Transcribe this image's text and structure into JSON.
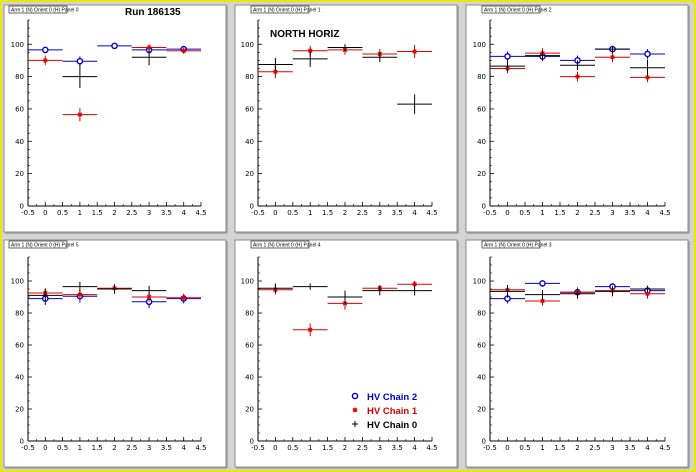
{
  "canvas_title": "Run 186135",
  "chart_data": [
    {
      "type": "scatter",
      "title": "Arm 1 (N) Orient 0 (H) Panel 0",
      "annotation": "Run 186135",
      "xlim": [
        -0.5,
        4.5
      ],
      "ylim": [
        0,
        115
      ],
      "xticks": [
        "-0.5",
        "0",
        "0.5",
        "1",
        "1.5",
        "2",
        "2.5",
        "3",
        "3.5",
        "4",
        "4.5"
      ],
      "yticks": [
        "0",
        "20",
        "40",
        "60",
        "80",
        "100"
      ],
      "series": [
        {
          "name": "HV Chain 2",
          "color": "#0000cc",
          "marker": "circle",
          "points": [
            {
              "x": 0,
              "y": 96.5,
              "err": 2
            },
            {
              "x": 1,
              "y": 89.5,
              "err": 3
            },
            {
              "x": 2,
              "y": 99,
              "err": 1
            },
            {
              "x": 3,
              "y": 96.5,
              "err": 2
            },
            {
              "x": 4,
              "y": 97,
              "err": 2
            }
          ]
        },
        {
          "name": "HV Chain 1",
          "color": "#dd0000",
          "marker": "star",
          "points": [
            {
              "x": 0,
              "y": 90,
              "err": 3
            },
            {
              "x": 1,
              "y": 56.5,
              "err": 4
            },
            {
              "x": 3,
              "y": 98,
              "err": 2
            },
            {
              "x": 4,
              "y": 96,
              "err": 2
            }
          ]
        },
        {
          "name": "HV Chain 0",
          "color": "#000000",
          "marker": "plus",
          "points": [
            {
              "x": 1,
              "y": 80,
              "err": 7
            },
            {
              "x": 3,
              "y": 92,
              "err": 5
            }
          ]
        }
      ]
    },
    {
      "type": "scatter",
      "title": "Arm 1 (N) Orient 0 (H) Panel 1",
      "annotation": "NORTH HORIZ",
      "xlim": [
        -0.5,
        4.5
      ],
      "ylim": [
        0,
        115
      ],
      "xticks": [
        "-0.5",
        "0",
        "0.5",
        "1",
        "1.5",
        "2",
        "2.5",
        "3",
        "3.5",
        "4",
        "4.5"
      ],
      "yticks": [
        "0",
        "20",
        "40",
        "60",
        "80",
        "100"
      ],
      "series": [
        {
          "name": "HV Chain 2",
          "color": "#0000cc",
          "marker": "circle",
          "points": []
        },
        {
          "name": "HV Chain 1",
          "color": "#dd0000",
          "marker": "star",
          "points": [
            {
              "x": 0,
              "y": 83,
              "err": 4
            },
            {
              "x": 1,
              "y": 96,
              "err": 3
            },
            {
              "x": 2,
              "y": 96.5,
              "err": 3
            },
            {
              "x": 3,
              "y": 94,
              "err": 3
            },
            {
              "x": 4,
              "y": 95.5,
              "err": 4
            }
          ]
        },
        {
          "name": "HV Chain 0",
          "color": "#000000",
          "marker": "plus",
          "points": [
            {
              "x": 0,
              "y": 87.5,
              "err": 4
            },
            {
              "x": 1,
              "y": 91,
              "err": 5
            },
            {
              "x": 2,
              "y": 98,
              "err": 2
            },
            {
              "x": 3,
              "y": 92,
              "err": 3
            },
            {
              "x": 4,
              "y": 63,
              "err": 6
            }
          ]
        }
      ]
    },
    {
      "type": "scatter",
      "title": "Arm 1 (N) Orient 0 (H) Panel 2",
      "xlim": [
        -0.5,
        4.5
      ],
      "ylim": [
        0,
        115
      ],
      "xticks": [
        "-0.5",
        "0",
        "0.5",
        "1",
        "1.5",
        "2",
        "2.5",
        "3",
        "3.5",
        "4",
        "4.5"
      ],
      "yticks": [
        "0",
        "20",
        "40",
        "60",
        "80",
        "100"
      ],
      "series": [
        {
          "name": "HV Chain 2",
          "color": "#0000cc",
          "marker": "circle",
          "points": [
            {
              "x": 0,
              "y": 92.5,
              "err": 3
            },
            {
              "x": 1,
              "y": 92.5,
              "err": 3
            },
            {
              "x": 2,
              "y": 90,
              "err": 3
            },
            {
              "x": 3,
              "y": 97,
              "err": 2
            },
            {
              "x": 4,
              "y": 94,
              "err": 3
            }
          ]
        },
        {
          "name": "HV Chain 1",
          "color": "#dd0000",
          "marker": "star",
          "points": [
            {
              "x": 0,
              "y": 85,
              "err": 3
            },
            {
              "x": 1,
              "y": 94.5,
              "err": 3
            },
            {
              "x": 2,
              "y": 80,
              "err": 3
            },
            {
              "x": 3,
              "y": 92,
              "err": 3
            },
            {
              "x": 4,
              "y": 79.5,
              "err": 3
            }
          ]
        },
        {
          "name": "HV Chain 0",
          "color": "#000000",
          "marker": "plus",
          "points": [
            {
              "x": 0,
              "y": 86.5,
              "err": 3
            },
            {
              "x": 1,
              "y": 93,
              "err": 3
            },
            {
              "x": 2,
              "y": 87,
              "err": 3
            },
            {
              "x": 3,
              "y": 97,
              "err": 2
            },
            {
              "x": 4,
              "y": 85.5,
              "err": 5
            }
          ]
        }
      ]
    },
    {
      "type": "scatter",
      "title": "Arm 1 (N) Orient 0 (H) Panel 5",
      "xlim": [
        -0.5,
        4.5
      ],
      "ylim": [
        0,
        115
      ],
      "xticks": [
        "-0.5",
        "0",
        "0.5",
        "1",
        "1.5",
        "2",
        "2.5",
        "3",
        "3.5",
        "4",
        "4.5"
      ],
      "yticks": [
        "0",
        "20",
        "40",
        "60",
        "80",
        "100"
      ],
      "series": [
        {
          "name": "HV Chain 2",
          "color": "#0000cc",
          "marker": "circle",
          "points": [
            {
              "x": 0,
              "y": 89,
              "err": 4
            },
            {
              "x": 1,
              "y": 90.5,
              "err": 4
            },
            {
              "x": 3,
              "y": 87,
              "err": 4
            },
            {
              "x": 4,
              "y": 89,
              "err": 3
            }
          ]
        },
        {
          "name": "HV Chain 1",
          "color": "#dd0000",
          "marker": "star",
          "points": [
            {
              "x": 0,
              "y": 92.5,
              "err": 3
            },
            {
              "x": 1,
              "y": 91.5,
              "err": 3
            },
            {
              "x": 2,
              "y": 95.5,
              "err": 2
            },
            {
              "x": 3,
              "y": 90,
              "err": 3
            },
            {
              "x": 4,
              "y": 89.5,
              "err": 2
            }
          ]
        },
        {
          "name": "HV Chain 0",
          "color": "#000000",
          "marker": "plus",
          "points": [
            {
              "x": 0,
              "y": 91,
              "err": 4
            },
            {
              "x": 1,
              "y": 96.5,
              "err": 3
            },
            {
              "x": 2,
              "y": 95,
              "err": 3
            },
            {
              "x": 3,
              "y": 94,
              "err": 3
            }
          ]
        }
      ]
    },
    {
      "type": "scatter",
      "title": "Arm 1 (N) Orient 0 (H) Panel 4",
      "xlim": [
        -0.5,
        4.5
      ],
      "ylim": [
        0,
        115
      ],
      "xticks": [
        "-0.5",
        "0",
        "0.5",
        "1",
        "1.5",
        "2",
        "2.5",
        "3",
        "3.5",
        "4",
        "4.5"
      ],
      "yticks": [
        "0",
        "20",
        "40",
        "60",
        "80",
        "100"
      ],
      "legend_position": "bottom-right",
      "series": [
        {
          "name": "HV Chain 2",
          "color": "#0000cc",
          "marker": "circle",
          "points": []
        },
        {
          "name": "HV Chain 1",
          "color": "#dd0000",
          "marker": "star",
          "points": [
            {
              "x": 0,
              "y": 94.5,
              "err": 3
            },
            {
              "x": 1,
              "y": 69.5,
              "err": 4
            },
            {
              "x": 2,
              "y": 86,
              "err": 4
            },
            {
              "x": 3,
              "y": 95.5,
              "err": 2
            },
            {
              "x": 4,
              "y": 98,
              "err": 2
            }
          ]
        },
        {
          "name": "HV Chain 0",
          "color": "#000000",
          "marker": "plus",
          "points": [
            {
              "x": 0,
              "y": 95.5,
              "err": 3
            },
            {
              "x": 1,
              "y": 96.5,
              "err": 2
            },
            {
              "x": 2,
              "y": 90,
              "err": 4
            },
            {
              "x": 3,
              "y": 94,
              "err": 3
            },
            {
              "x": 4,
              "y": 94,
              "err": 3
            }
          ]
        }
      ]
    },
    {
      "type": "scatter",
      "title": "Arm 1 (N) Orient 0 (H) Panel 3",
      "xlim": [
        -0.5,
        4.5
      ],
      "ylim": [
        0,
        115
      ],
      "xticks": [
        "-0.5",
        "0",
        "0.5",
        "1",
        "1.5",
        "2",
        "2.5",
        "3",
        "3.5",
        "4",
        "4.5"
      ],
      "yticks": [
        "0",
        "20",
        "40",
        "60",
        "80",
        "100"
      ],
      "series": [
        {
          "name": "HV Chain 2",
          "color": "#0000cc",
          "marker": "circle",
          "points": [
            {
              "x": 0,
              "y": 89,
              "err": 3
            },
            {
              "x": 1,
              "y": 98.5,
              "err": 2
            },
            {
              "x": 2,
              "y": 93,
              "err": 3
            },
            {
              "x": 3,
              "y": 96.5,
              "err": 2
            },
            {
              "x": 4,
              "y": 94,
              "err": 3
            }
          ]
        },
        {
          "name": "HV Chain 1",
          "color": "#dd0000",
          "marker": "star",
          "points": [
            {
              "x": 0,
              "y": 94.5,
              "err": 3
            },
            {
              "x": 1,
              "y": 87.5,
              "err": 3
            },
            {
              "x": 2,
              "y": 93,
              "err": 3
            },
            {
              "x": 3,
              "y": 94,
              "err": 3
            },
            {
              "x": 4,
              "y": 92,
              "err": 3
            }
          ]
        },
        {
          "name": "HV Chain 0",
          "color": "#000000",
          "marker": "plus",
          "points": [
            {
              "x": 0,
              "y": 93.5,
              "err": 4
            },
            {
              "x": 1,
              "y": 91.5,
              "err": 3
            },
            {
              "x": 2,
              "y": 92,
              "err": 3
            },
            {
              "x": 3,
              "y": 93.5,
              "err": 3
            },
            {
              "x": 4,
              "y": 95,
              "err": 2
            }
          ]
        }
      ]
    }
  ]
}
